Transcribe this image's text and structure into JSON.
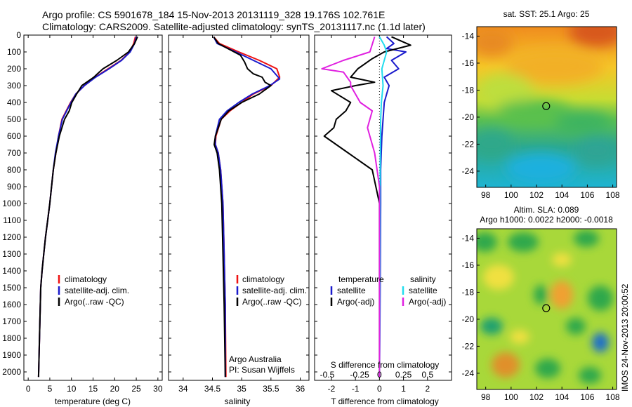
{
  "header": {
    "line1": "Argo profile: CS 5901678_184 15-Nov-2013 20131119_328 19.176S 102.761E",
    "line2": "Climatology: CARS2009. Satellite-adjusted climatology: synTS_20131117.nc (1.1d later)"
  },
  "side_label": "IMOS 24-Nov-2013 20:00:52",
  "colors": {
    "climatology": "#ee1111",
    "satellite": "#1a1acc",
    "argo": "#000000",
    "salinity_satellite": "#22ddee",
    "salinity_argo": "#e020e0"
  },
  "chart_data": [
    {
      "type": "line",
      "id": "temperature",
      "xlabel": "temperature (deg C)",
      "xlim": [
        -1,
        31
      ],
      "xticks": [
        0,
        5,
        10,
        15,
        20,
        25,
        30
      ],
      "ylim": [
        2050,
        0
      ],
      "yticks": [
        0,
        100,
        200,
        300,
        400,
        500,
        600,
        700,
        800,
        900,
        1000,
        1100,
        1200,
        1300,
        1400,
        1500,
        1600,
        1700,
        1800,
        1900,
        2000
      ],
      "legend": [
        "climatology",
        "satellite-adj. clim.",
        "Argo(..raw -QC)"
      ],
      "series": [
        {
          "name": "climatology",
          "color": "#ee1111",
          "x": [
            24.8,
            24.4,
            23.5,
            21.5,
            18.5,
            15.5,
            13.0,
            11.0,
            9.8,
            8.8,
            7.8,
            7.0,
            6.4,
            5.8,
            5.0,
            4.5,
            4.0,
            3.6,
            3.2,
            2.9,
            2.7,
            2.4
          ],
          "y": [
            10,
            50,
            100,
            150,
            200,
            250,
            300,
            350,
            400,
            450,
            500,
            600,
            700,
            800,
            1000,
            1100,
            1200,
            1300,
            1400,
            1500,
            1700,
            2030
          ]
        },
        {
          "name": "satellite-adj. clim.",
          "color": "#1a1acc",
          "x": [
            25.0,
            24.6,
            23.6,
            21.6,
            18.7,
            15.6,
            13.0,
            11.0,
            9.9,
            8.9,
            7.9,
            7.0,
            6.3,
            5.8,
            5.0,
            4.5,
            4.0,
            3.6,
            3.2,
            2.9,
            2.7,
            2.4
          ],
          "y": [
            10,
            50,
            100,
            150,
            200,
            250,
            300,
            350,
            400,
            450,
            500,
            600,
            700,
            800,
            1000,
            1100,
            1200,
            1300,
            1400,
            1500,
            1700,
            2030
          ]
        },
        {
          "name": "Argo(..raw -QC)",
          "color": "#000000",
          "x": [
            25.3,
            24.6,
            23.2,
            20.5,
            17.3,
            16.0,
            15.2,
            12.4,
            11.2,
            10.1,
            9.5,
            8.4,
            7.2,
            6.4,
            5.8,
            5.0,
            4.5,
            4.0,
            3.6,
            3.2,
            2.9,
            2.7,
            2.4
          ],
          "y": [
            10,
            50,
            100,
            150,
            200,
            230,
            250,
            300,
            350,
            400,
            450,
            500,
            600,
            700,
            800,
            1000,
            1100,
            1200,
            1300,
            1400,
            1500,
            1700,
            2030
          ]
        }
      ]
    },
    {
      "type": "line",
      "id": "salinity",
      "xlabel": "salinity",
      "xlim": [
        33.75,
        36.15
      ],
      "xticks": [
        34,
        34.5,
        35,
        35.5,
        36
      ],
      "ylim": [
        2050,
        0
      ],
      "legend": [
        "climatology",
        "satellite-adj. clim.",
        "Argo(..raw -QC)"
      ],
      "annotation": [
        "Argo Australia",
        "PI: Susan Wijffels"
      ],
      "series": [
        {
          "name": "climatology",
          "color": "#ee1111",
          "x": [
            34.52,
            34.62,
            34.95,
            35.3,
            35.6,
            35.65,
            35.5,
            35.2,
            35.0,
            34.8,
            34.65,
            34.56,
            34.55,
            34.6,
            34.64,
            34.68,
            34.7,
            34.72,
            34.73
          ],
          "y": [
            10,
            50,
            100,
            150,
            200,
            250,
            300,
            350,
            400,
            450,
            500,
            600,
            650,
            700,
            800,
            1000,
            1300,
            1600,
            2030
          ]
        },
        {
          "name": "satellite-adj. clim.",
          "color": "#1a1acc",
          "x": [
            34.52,
            34.58,
            34.9,
            35.2,
            35.5,
            35.65,
            35.48,
            35.18,
            34.95,
            34.75,
            34.62,
            34.55,
            34.55,
            34.6,
            34.64,
            34.68,
            34.7,
            34.72,
            34.72
          ],
          "y": [
            10,
            50,
            100,
            150,
            200,
            260,
            300,
            350,
            400,
            450,
            500,
            600,
            650,
            700,
            800,
            1000,
            1300,
            1600,
            2030
          ]
        },
        {
          "name": "Argo(..raw -QC)",
          "color": "#000000",
          "x": [
            34.52,
            34.6,
            34.98,
            35.05,
            35.1,
            35.2,
            35.35,
            35.4,
            35.5,
            35.3,
            35.0,
            34.78,
            34.65,
            34.55,
            34.53,
            34.58,
            34.62,
            34.66,
            34.68,
            34.7,
            34.72
          ],
          "y": [
            10,
            50,
            120,
            160,
            200,
            230,
            250,
            280,
            300,
            350,
            400,
            450,
            500,
            600,
            650,
            700,
            800,
            1000,
            1300,
            1600,
            2030
          ]
        }
      ]
    },
    {
      "type": "line",
      "id": "difference",
      "xlabel": "T difference from climatology",
      "xlabel_top": "S difference from climatology",
      "xlim": [
        -2.7,
        3.0
      ],
      "xticks": [
        -2,
        -1,
        0,
        1,
        2
      ],
      "xticks_top_labels": [
        "-0.5",
        "-0.25",
        "0",
        "0.25",
        "0.5"
      ],
      "ylim": [
        2050,
        0
      ],
      "legend": {
        "temperature": [
          "satellite",
          "Argo(-adj)"
        ],
        "salinity": [
          "satellite",
          "Argo(-adj)"
        ]
      },
      "series": [
        {
          "name": "temperature satellite",
          "color": "#1a1acc",
          "x": [
            0.3,
            0.6,
            0.3,
            1.1,
            0.5,
            0.8,
            0.2,
            0.4,
            0.3,
            0.2,
            0.15,
            0.1,
            0.05,
            0.05,
            0.03,
            0.0
          ],
          "y": [
            10,
            50,
            80,
            100,
            150,
            200,
            250,
            300,
            350,
            400,
            500,
            600,
            800,
            1000,
            1500,
            2030
          ]
        },
        {
          "name": "temperature Argo(-adj)",
          "color": "#000000",
          "x": [
            0.5,
            1.3,
            0.2,
            -0.3,
            -0.9,
            -1.2,
            -0.2,
            -1.0,
            -2.0,
            -1.2,
            -1.4,
            -1.8,
            -1.9,
            -2.3,
            -1.3,
            -0.3,
            0.0,
            0.0
          ],
          "y": [
            10,
            60,
            100,
            140,
            200,
            250,
            280,
            300,
            330,
            400,
            450,
            500,
            550,
            600,
            700,
            800,
            1000,
            2030
          ]
        },
        {
          "name": "salinity satellite",
          "color": "#22ddee",
          "x": [
            0.0,
            0.2,
            0.3,
            0.2,
            0.1,
            0.15,
            0.08,
            0.05,
            0.03,
            0.02,
            0.0
          ],
          "y": [
            10,
            60,
            100,
            150,
            200,
            300,
            400,
            500,
            800,
            1200,
            2030
          ]
        },
        {
          "name": "salinity Argo(-adj)",
          "color": "#e020e0",
          "x": [
            -0.2,
            -0.4,
            -1.5,
            -2.4,
            -1.5,
            -1.2,
            -1.2,
            -0.8,
            -0.3,
            -0.5,
            -0.2,
            0.0,
            0.0
          ],
          "y": [
            10,
            100,
            150,
            200,
            220,
            280,
            300,
            400,
            450,
            550,
            700,
            900,
            2030
          ]
        }
      ]
    },
    {
      "type": "heatmap",
      "id": "sst-map",
      "title": "sat. SST: 25.1 Argo: 25",
      "xlim": [
        97.3,
        108.3
      ],
      "ylim": [
        -25.2,
        -13.3
      ],
      "xticks": [
        98,
        100,
        102,
        104,
        106,
        108
      ],
      "yticks": [
        -14,
        -16,
        -18,
        -20,
        -22,
        -24
      ],
      "marker": {
        "lon": 102.76,
        "lat": -19.18
      }
    },
    {
      "type": "heatmap",
      "id": "sla-map",
      "title_lines": [
        "Altim. SLA: 0.089",
        "Argo h1000: 0.0022 h2000: -0.0018"
      ],
      "xlim": [
        97.3,
        108.3
      ],
      "ylim": [
        -25.2,
        -13.3
      ],
      "xticks": [
        98,
        100,
        102,
        104,
        106,
        108
      ],
      "yticks": [
        -14,
        -16,
        -18,
        -20,
        -22,
        -24
      ],
      "marker": {
        "lon": 102.76,
        "lat": -19.18
      }
    }
  ]
}
